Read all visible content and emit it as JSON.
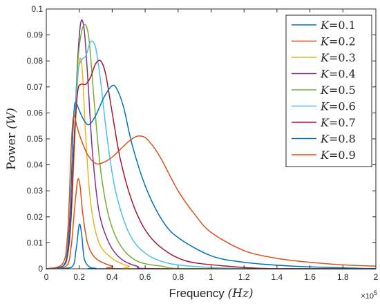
{
  "chart_data": {
    "type": "line",
    "xlabel": {
      "prefix": "Frequency ",
      "unit": "(Hz)"
    },
    "ylabel": {
      "prefix": "Power ",
      "unit": "(W)"
    },
    "x_multiplier": {
      "base": "×10",
      "exponent": "5"
    },
    "xlim": [
      0,
      2
    ],
    "ylim": [
      0,
      0.1
    ],
    "x_ticks": [
      "0",
      "0.2",
      "0.4",
      "0.6",
      "0.8",
      "1",
      "1.2",
      "1.4",
      "1.6",
      "1.8",
      "2"
    ],
    "y_ticks": [
      "0",
      "0.01",
      "0.02",
      "0.03",
      "0.04",
      "0.05",
      "0.06",
      "0.07",
      "0.08",
      "0.09",
      "0.1"
    ],
    "grid": false,
    "legend_position": "top-right",
    "series": [
      {
        "name": "K=0.1",
        "color": "#0072BD",
        "points": [
          [
            0,
            0
          ],
          [
            0.15,
            0.0005
          ],
          [
            0.18,
            0.007
          ],
          [
            0.2,
            0.017
          ],
          [
            0.215,
            0.013
          ],
          [
            0.23,
            0.004
          ],
          [
            0.26,
            0.0008
          ],
          [
            0.3,
            0.0002
          ],
          [
            0.4,
            0
          ],
          [
            2,
            0
          ]
        ]
      },
      {
        "name": "K=0.2",
        "color": "#D95319",
        "points": [
          [
            0,
            0
          ],
          [
            0.12,
            0.001
          ],
          [
            0.15,
            0.008
          ],
          [
            0.17,
            0.022
          ],
          [
            0.19,
            0.034
          ],
          [
            0.205,
            0.032
          ],
          [
            0.22,
            0.022
          ],
          [
            0.25,
            0.01
          ],
          [
            0.3,
            0.004
          ],
          [
            0.4,
            0.001
          ],
          [
            0.5,
            0
          ],
          [
            2,
            0
          ]
        ]
      },
      {
        "name": "K=0.3",
        "color": "#EDB120",
        "points": [
          [
            0,
            0
          ],
          [
            0.1,
            0.001
          ],
          [
            0.13,
            0.005
          ],
          [
            0.15,
            0.018
          ],
          [
            0.17,
            0.045
          ],
          [
            0.19,
            0.072
          ],
          [
            0.205,
            0.081
          ],
          [
            0.22,
            0.075
          ],
          [
            0.24,
            0.05
          ],
          [
            0.27,
            0.025
          ],
          [
            0.32,
            0.01
          ],
          [
            0.4,
            0.004
          ],
          [
            0.5,
            0.001
          ],
          [
            0.6,
            0
          ],
          [
            2,
            0
          ]
        ]
      },
      {
        "name": "K=0.4",
        "color": "#7E2F8E",
        "points": [
          [
            0,
            0
          ],
          [
            0.1,
            0.001
          ],
          [
            0.13,
            0.006
          ],
          [
            0.15,
            0.02
          ],
          [
            0.17,
            0.05
          ],
          [
            0.19,
            0.08
          ],
          [
            0.21,
            0.095
          ],
          [
            0.23,
            0.092
          ],
          [
            0.25,
            0.075
          ],
          [
            0.28,
            0.045
          ],
          [
            0.32,
            0.022
          ],
          [
            0.38,
            0.01
          ],
          [
            0.45,
            0.004
          ],
          [
            0.55,
            0.001
          ],
          [
            0.7,
            0
          ],
          [
            2,
            0
          ]
        ]
      },
      {
        "name": "K=0.5",
        "color": "#77AC30",
        "points": [
          [
            0,
            0
          ],
          [
            0.1,
            0.001
          ],
          [
            0.13,
            0.006
          ],
          [
            0.15,
            0.02
          ],
          [
            0.17,
            0.05
          ],
          [
            0.19,
            0.078
          ],
          [
            0.21,
            0.09
          ],
          [
            0.235,
            0.094
          ],
          [
            0.26,
            0.088
          ],
          [
            0.29,
            0.065
          ],
          [
            0.33,
            0.038
          ],
          [
            0.38,
            0.02
          ],
          [
            0.45,
            0.009
          ],
          [
            0.55,
            0.003
          ],
          [
            0.7,
            0.001
          ],
          [
            0.9,
            0
          ],
          [
            2,
            0
          ]
        ]
      },
      {
        "name": "K=0.6",
        "color": "#4DBEEE",
        "points": [
          [
            0,
            0
          ],
          [
            0.1,
            0.001
          ],
          [
            0.13,
            0.006
          ],
          [
            0.15,
            0.02
          ],
          [
            0.17,
            0.05
          ],
          [
            0.19,
            0.074
          ],
          [
            0.21,
            0.08
          ],
          [
            0.24,
            0.082
          ],
          [
            0.27,
            0.0875
          ],
          [
            0.3,
            0.085
          ],
          [
            0.33,
            0.072
          ],
          [
            0.37,
            0.05
          ],
          [
            0.42,
            0.03
          ],
          [
            0.5,
            0.014
          ],
          [
            0.6,
            0.006
          ],
          [
            0.75,
            0.002
          ],
          [
            1.0,
            0.0005
          ],
          [
            1.3,
            0
          ],
          [
            2,
            0
          ]
        ]
      },
      {
        "name": "K=0.7",
        "color": "#A2142F",
        "points": [
          [
            0,
            0
          ],
          [
            0.1,
            0.001
          ],
          [
            0.13,
            0.006
          ],
          [
            0.15,
            0.02
          ],
          [
            0.17,
            0.05
          ],
          [
            0.19,
            0.068
          ],
          [
            0.21,
            0.071
          ],
          [
            0.24,
            0.071
          ],
          [
            0.27,
            0.074
          ],
          [
            0.3,
            0.079
          ],
          [
            0.33,
            0.08
          ],
          [
            0.36,
            0.075
          ],
          [
            0.4,
            0.06
          ],
          [
            0.45,
            0.042
          ],
          [
            0.52,
            0.026
          ],
          [
            0.6,
            0.015
          ],
          [
            0.7,
            0.008
          ],
          [
            0.85,
            0.003
          ],
          [
            1.1,
            0.001
          ],
          [
            1.4,
            0
          ],
          [
            2,
            0
          ]
        ]
      },
      {
        "name": "K=0.8",
        "color": "#0072BD",
        "points": [
          [
            0,
            0
          ],
          [
            0.1,
            0.001
          ],
          [
            0.13,
            0.008
          ],
          [
            0.15,
            0.03
          ],
          [
            0.16,
            0.05
          ],
          [
            0.17,
            0.062
          ],
          [
            0.18,
            0.064
          ],
          [
            0.2,
            0.061
          ],
          [
            0.23,
            0.057
          ],
          [
            0.26,
            0.0555
          ],
          [
            0.3,
            0.059
          ],
          [
            0.35,
            0.066
          ],
          [
            0.4,
            0.0705
          ],
          [
            0.43,
            0.069
          ],
          [
            0.47,
            0.062
          ],
          [
            0.52,
            0.048
          ],
          [
            0.6,
            0.032
          ],
          [
            0.7,
            0.019
          ],
          [
            0.8,
            0.012
          ],
          [
            1.0,
            0.005
          ],
          [
            1.2,
            0.0025
          ],
          [
            1.5,
            0.001
          ],
          [
            2,
            0
          ]
        ]
      },
      {
        "name": "K=0.9",
        "color": "#D95319",
        "points": [
          [
            0,
            0
          ],
          [
            0.1,
            0.002
          ],
          [
            0.13,
            0.014
          ],
          [
            0.15,
            0.045
          ],
          [
            0.16,
            0.056
          ],
          [
            0.17,
            0.059
          ],
          [
            0.185,
            0.055
          ],
          [
            0.21,
            0.05
          ],
          [
            0.25,
            0.044
          ],
          [
            0.3,
            0.0405
          ],
          [
            0.35,
            0.041
          ],
          [
            0.4,
            0.043
          ],
          [
            0.45,
            0.046
          ],
          [
            0.5,
            0.049
          ],
          [
            0.55,
            0.051
          ],
          [
            0.6,
            0.0505
          ],
          [
            0.65,
            0.047
          ],
          [
            0.7,
            0.042
          ],
          [
            0.8,
            0.03
          ],
          [
            0.9,
            0.021
          ],
          [
            1.0,
            0.014
          ],
          [
            1.2,
            0.007
          ],
          [
            1.4,
            0.004
          ],
          [
            1.6,
            0.0025
          ],
          [
            1.8,
            0.0015
          ],
          [
            2,
            0.001
          ]
        ]
      }
    ]
  }
}
